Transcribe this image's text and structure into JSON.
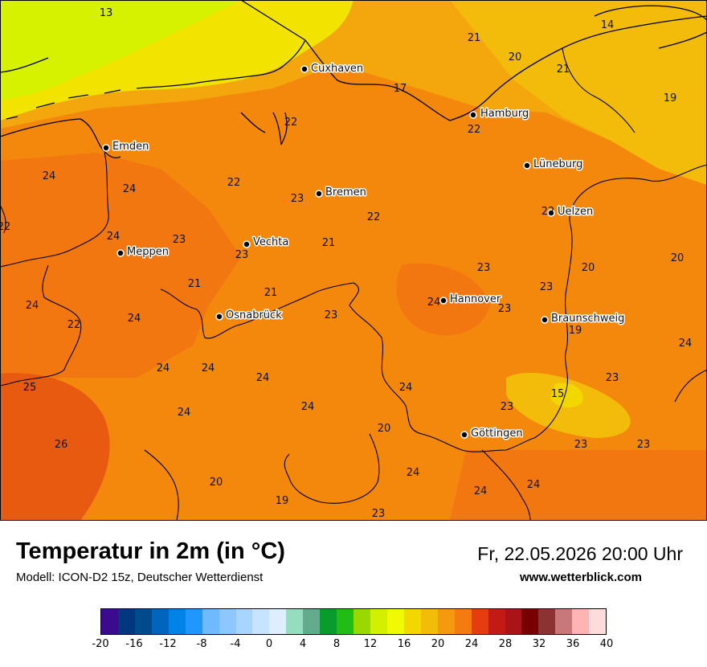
{
  "title": "Temperatur in 2m (in °C)",
  "model": "Modell: ICON-D2 15z, Deutscher Wetterdienst",
  "datetime": "Fr, 22.05.2026 20:00 Uhr",
  "website": "www.wetterblick.com",
  "cities": [
    {
      "name": "Cuxhaven"
    },
    {
      "name": "Hamburg"
    },
    {
      "name": "Emden"
    },
    {
      "name": "Lüneburg"
    },
    {
      "name": "Bremen"
    },
    {
      "name": "Uelzen"
    },
    {
      "name": "Meppen"
    },
    {
      "name": "Vechta"
    },
    {
      "name": "Hannover"
    },
    {
      "name": "Osnabrück"
    },
    {
      "name": "Braunschweig"
    },
    {
      "name": "Göttingen"
    }
  ],
  "values": [
    "13",
    "14",
    "21",
    "20",
    "21",
    "17",
    "19",
    "22",
    "22",
    "24",
    "22",
    "24",
    "23",
    "22",
    "22",
    "22",
    "24",
    "23",
    "23",
    "21",
    "20",
    "20",
    "23",
    "21",
    "21",
    "24",
    "23",
    "23",
    "24",
    "22",
    "24",
    "19",
    "23",
    "24",
    "24",
    "24",
    "24",
    "25",
    "24",
    "15",
    "23",
    "24",
    "20",
    "23",
    "26",
    "23",
    "23",
    "24",
    "20",
    "24",
    "24",
    "19",
    "23",
    "24"
  ],
  "legend": {
    "colors": [
      "#3c0a8c",
      "#00377d",
      "#004b8c",
      "#0065bd",
      "#0083e6",
      "#2097ff",
      "#6fb9ff",
      "#8cc8ff",
      "#a8d5ff",
      "#c6e3ff",
      "#dfeeff",
      "#96dcbe",
      "#64aa8c",
      "#0a9b2d",
      "#22bd14",
      "#99d800",
      "#d2f000",
      "#f0fa00",
      "#f2d800",
      "#f3bc08",
      "#f49a0c",
      "#f57a0f",
      "#e63c10",
      "#c31a16",
      "#aa1419",
      "#780000",
      "#8c3232",
      "#c87878",
      "#ffb4b4",
      "#ffdcdc"
    ],
    "ticks": [
      "-20",
      "-16",
      "-12",
      "-8",
      "-4",
      "0",
      "4",
      "8",
      "12",
      "16",
      "20",
      "24",
      "28",
      "32",
      "36",
      "40"
    ]
  }
}
